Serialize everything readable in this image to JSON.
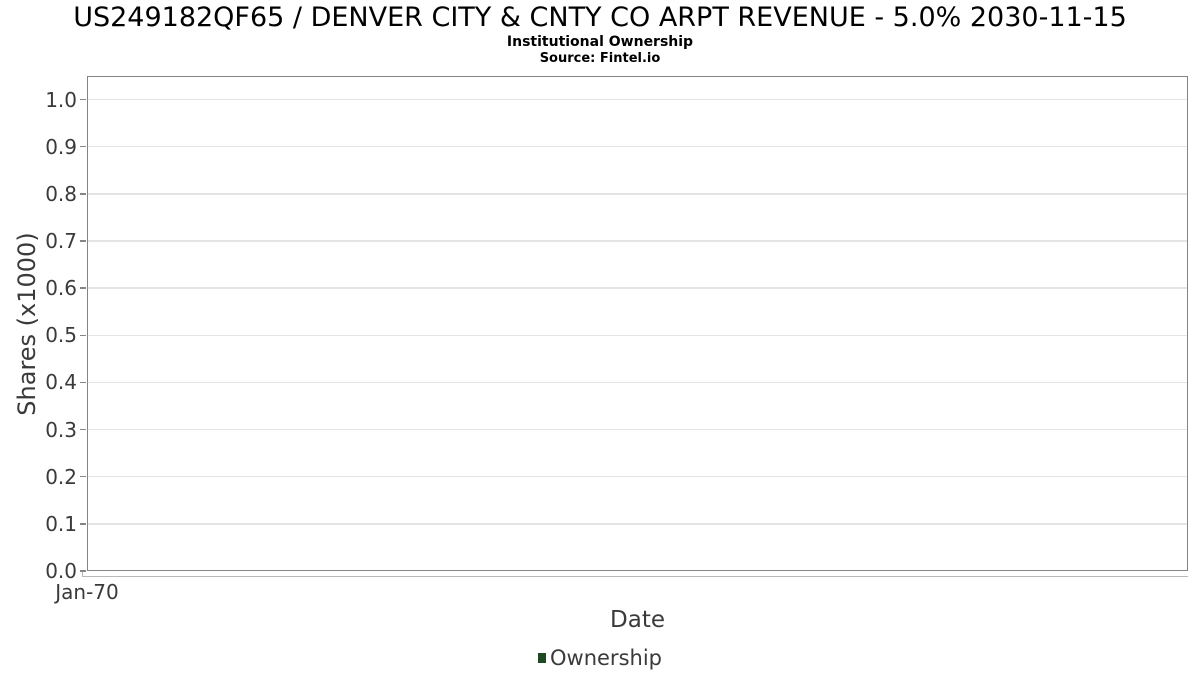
{
  "header": {
    "title": "US249182QF65 / DENVER CITY & CNTY CO ARPT REVENUE - 5.0% 2030-11-15",
    "subtitle": "Institutional Ownership",
    "source": "Source: Fintel.io"
  },
  "chart_data": {
    "type": "line",
    "title": "US249182QF65 / DENVER CITY & CNTY CO ARPT REVENUE - 5.0% 2030-11-15",
    "subtitle": "Institutional Ownership",
    "source": "Source: Fintel.io",
    "xlabel": "Date",
    "ylabel": "Shares (x1000)",
    "ylim": [
      0.0,
      1.05
    ],
    "yticks": [
      0.0,
      0.1,
      0.2,
      0.3,
      0.4,
      0.5,
      0.6,
      0.7,
      0.8,
      0.9,
      1.0
    ],
    "ytick_labels": [
      "0.0",
      "0.1",
      "0.2",
      "0.3",
      "0.4",
      "0.5",
      "0.6",
      "0.7",
      "0.8",
      "0.9",
      "1.0"
    ],
    "xtick_labels": [
      "Jan-70"
    ],
    "grid": "horizontal",
    "legend": {
      "position": "bottom",
      "entries": [
        {
          "label": "Ownership",
          "color": "#1e4a23"
        }
      ]
    },
    "series": [
      {
        "name": "Ownership",
        "color": "#1e4a23",
        "x": [],
        "values": []
      }
    ]
  },
  "colors": {
    "background": "#ffffff",
    "title_text": "#000000",
    "text": "#3a3a3a",
    "plot_border": "#858585",
    "gridline": "#e4e4e4",
    "axis_line": "#b8b8b8",
    "legend_marker": "#1e4a23"
  }
}
